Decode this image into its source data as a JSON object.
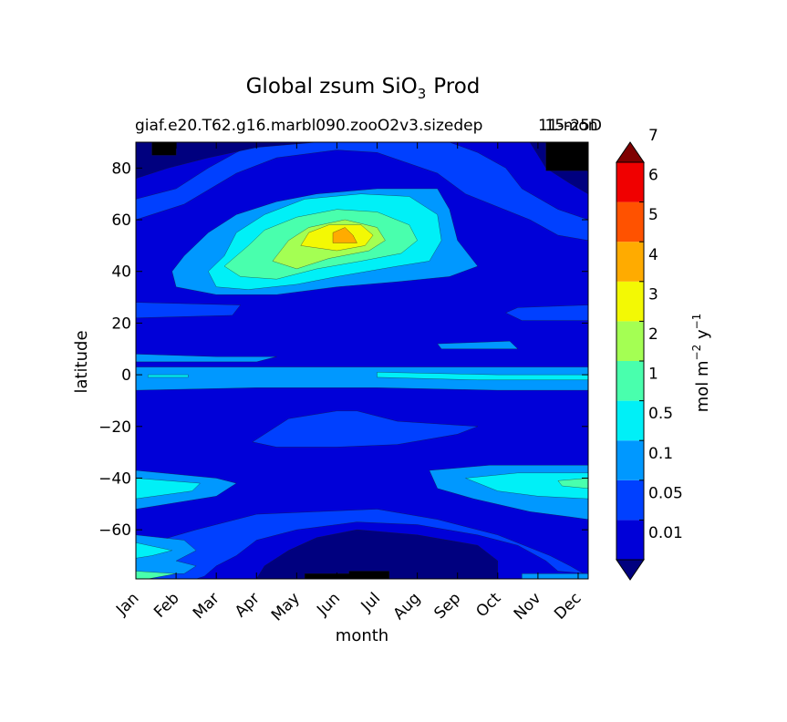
{
  "chart_data": {
    "type": "contourf",
    "title": "Global zsum SiO",
    "title_subscript": "3",
    "title_suffix": "Prod",
    "subtitle_left": "giaf.e20.T62.g16.marbl090.zooO2v3.sizedep",
    "subtitle_right": "15-25D",
    "subtitle_overlap": "11-mon",
    "xlabel": "month",
    "ylabel": "latitude",
    "x_ticks": [
      "Jan",
      "Feb",
      "Mar",
      "Apr",
      "May",
      "Jun",
      "Jul",
      "Aug",
      "Sep",
      "Oct",
      "Nov",
      "Dec"
    ],
    "xlim": [
      0,
      11.25
    ],
    "ylim": [
      -79,
      90
    ],
    "y_ticks": [
      -60,
      -40,
      -20,
      0,
      20,
      40,
      60,
      80
    ],
    "y_tick_labels": [
      "−60",
      "−40",
      "−20",
      "0",
      "20",
      "40",
      "60",
      "80"
    ],
    "colorbar": {
      "label_text": "mol m",
      "label_sup1": "−2",
      "label_mid": " y",
      "label_sup2": "−1",
      "extend": "both",
      "levels": [
        0.01,
        0.05,
        0.1,
        0.5,
        1,
        2,
        3,
        4,
        5,
        6,
        7
      ],
      "tick_labels": [
        "0.01",
        "0.05",
        "0.1",
        "0.5",
        "1",
        "2",
        "3",
        "4",
        "5",
        "6",
        "7"
      ],
      "colors": [
        "#00007f",
        "#0000d8",
        "#0040ff",
        "#0098ff",
        "#00f0f7",
        "#49ffad",
        "#a4ff53",
        "#f3f904",
        "#ffab00",
        "#ff5200",
        "#f00000",
        "#7f0000"
      ]
    },
    "regions": [
      {
        "level": 1,
        "label": "background",
        "poly": [
          [
            0,
            -79
          ],
          [
            11.25,
            -79
          ],
          [
            11.25,
            90
          ],
          [
            0,
            90
          ]
        ]
      },
      {
        "level": 2,
        "label": "north-low",
        "poly": [
          [
            0,
            90
          ],
          [
            11.25,
            90
          ],
          [
            11.25,
            52
          ],
          [
            10.5,
            54
          ],
          [
            9.8,
            60
          ],
          [
            8.2,
            70
          ],
          [
            7.5,
            78
          ],
          [
            6.0,
            86
          ],
          [
            5.0,
            87
          ],
          [
            3.5,
            84
          ],
          [
            2.5,
            78
          ],
          [
            1.2,
            66
          ],
          [
            0,
            60
          ]
        ]
      },
      {
        "level": 1,
        "label": "north-very-low",
        "poly": [
          [
            0,
            90
          ],
          [
            11.25,
            90
          ],
          [
            11.25,
            60
          ],
          [
            10.5,
            64
          ],
          [
            9.6,
            72
          ],
          [
            9.2,
            80
          ],
          [
            8.5,
            86
          ],
          [
            7.8,
            90
          ],
          [
            3.0,
            90
          ],
          [
            2.5,
            86
          ],
          [
            1.8,
            80
          ],
          [
            1.0,
            72
          ],
          [
            0,
            68
          ]
        ]
      },
      {
        "level": 0,
        "label": "north-min",
        "poly": [
          [
            0,
            90
          ],
          [
            11.25,
            90
          ],
          [
            11.25,
            70
          ],
          [
            10.8,
            74
          ],
          [
            10.2,
            80
          ],
          [
            9.8,
            90
          ],
          [
            4.5,
            90
          ],
          [
            3.0,
            88
          ],
          [
            1.8,
            84
          ],
          [
            0.8,
            80
          ],
          [
            0,
            76
          ]
        ]
      },
      {
        "level": -1,
        "label": "north-below",
        "poly": [
          [
            0.4,
            90
          ],
          [
            1.0,
            90
          ],
          [
            1.0,
            85
          ],
          [
            0.4,
            85
          ]
        ]
      },
      {
        "level": -1,
        "label": "north-below-2",
        "poly": [
          [
            10.2,
            90
          ],
          [
            11.25,
            90
          ],
          [
            11.25,
            79
          ],
          [
            10.2,
            79
          ]
        ]
      },
      {
        "level": 3,
        "label": "north-bloom-0.5",
        "poly": [
          [
            1.2,
            46
          ],
          [
            1.8,
            55
          ],
          [
            2.5,
            62
          ],
          [
            3.5,
            67
          ],
          [
            4.5,
            70
          ],
          [
            6.0,
            72
          ],
          [
            7.5,
            72
          ],
          [
            7.8,
            64
          ],
          [
            8.0,
            52
          ],
          [
            8.5,
            42
          ],
          [
            7.8,
            38
          ],
          [
            6.5,
            36
          ],
          [
            5.0,
            34
          ],
          [
            3.5,
            31
          ],
          [
            2.0,
            31
          ],
          [
            1.0,
            34
          ],
          [
            0.9,
            40
          ]
        ]
      },
      {
        "level": 4,
        "label": "north-bloom-1",
        "poly": [
          [
            1.8,
            40
          ],
          [
            2.2,
            46
          ],
          [
            2.5,
            55
          ],
          [
            3.2,
            62
          ],
          [
            4.2,
            68
          ],
          [
            5.6,
            70
          ],
          [
            6.8,
            69
          ],
          [
            7.5,
            62
          ],
          [
            7.6,
            52
          ],
          [
            7.3,
            44
          ],
          [
            6.5,
            42
          ],
          [
            5.0,
            38
          ],
          [
            4.0,
            35
          ],
          [
            2.8,
            33
          ],
          [
            2.0,
            34
          ]
        ]
      },
      {
        "level": 5,
        "label": "north-bloom-2",
        "poly": [
          [
            2.2,
            42
          ],
          [
            2.8,
            50
          ],
          [
            3.2,
            56
          ],
          [
            4.0,
            61
          ],
          [
            5.0,
            64
          ],
          [
            6.0,
            63
          ],
          [
            6.8,
            58
          ],
          [
            7.0,
            52
          ],
          [
            6.6,
            47
          ],
          [
            5.6,
            44
          ],
          [
            4.5,
            41
          ],
          [
            3.5,
            37
          ],
          [
            2.6,
            38
          ]
        ]
      },
      {
        "level": 6,
        "label": "north-bloom-3",
        "poly": [
          [
            3.4,
            44
          ],
          [
            3.8,
            52
          ],
          [
            4.3,
            57
          ],
          [
            5.2,
            60
          ],
          [
            6.0,
            57
          ],
          [
            6.2,
            52
          ],
          [
            5.8,
            48
          ],
          [
            4.8,
            45
          ],
          [
            4.0,
            41
          ]
        ]
      },
      {
        "level": 7,
        "label": "north-bloom-4",
        "poly": [
          [
            4.1,
            50
          ],
          [
            4.3,
            55
          ],
          [
            4.8,
            58
          ],
          [
            5.6,
            58
          ],
          [
            5.9,
            54
          ],
          [
            5.7,
            50
          ],
          [
            5.0,
            48
          ]
        ]
      },
      {
        "level": 8,
        "label": "north-bloom-5",
        "poly": [
          [
            4.9,
            51
          ],
          [
            4.9,
            55
          ],
          [
            5.2,
            57
          ],
          [
            5.4,
            54
          ],
          [
            5.5,
            51
          ]
        ]
      },
      {
        "level": 2,
        "label": "band-25-low",
        "poly": [
          [
            0,
            28
          ],
          [
            2.6,
            27
          ],
          [
            2.4,
            23
          ],
          [
            0,
            22
          ]
        ]
      },
      {
        "level": 2,
        "label": "band-25-low-east",
        "poly": [
          [
            9.5,
            26
          ],
          [
            11.25,
            27
          ],
          [
            11.25,
            21
          ],
          [
            9.6,
            21
          ],
          [
            9.2,
            24
          ]
        ]
      },
      {
        "level": 3,
        "label": "equator-band",
        "poly": [
          [
            0,
            3
          ],
          [
            11.25,
            3
          ],
          [
            11.25,
            -6
          ],
          [
            9.0,
            -6
          ],
          [
            6.0,
            -5
          ],
          [
            3.0,
            -5
          ],
          [
            0,
            -6
          ]
        ]
      },
      {
        "level": 3,
        "label": "band-12",
        "poly": [
          [
            7.5,
            12
          ],
          [
            9.3,
            13
          ],
          [
            9.5,
            10
          ],
          [
            7.6,
            10
          ]
        ]
      },
      {
        "level": 3,
        "label": "band-5",
        "poly": [
          [
            0,
            8
          ],
          [
            2.0,
            7
          ],
          [
            3.5,
            7
          ],
          [
            3.0,
            5
          ],
          [
            0,
            5
          ]
        ]
      },
      {
        "level": 4,
        "label": "equator-core",
        "poly": [
          [
            6.0,
            1
          ],
          [
            9.0,
            0
          ],
          [
            11.25,
            0
          ],
          [
            11.25,
            -2
          ],
          [
            8.5,
            -2
          ],
          [
            6.0,
            -1
          ]
        ]
      },
      {
        "level": 4,
        "label": "equator-core-west",
        "poly": [
          [
            0.3,
            0
          ],
          [
            1.3,
            0
          ],
          [
            1.3,
            -1
          ],
          [
            0.3,
            -1
          ]
        ]
      },
      {
        "level": 2,
        "label": "south-trop-low",
        "poly": [
          [
            2.9,
            -26
          ],
          [
            3.8,
            -17
          ],
          [
            5.0,
            -14
          ],
          [
            5.5,
            -14
          ],
          [
            6.5,
            -18
          ],
          [
            8.5,
            -20
          ],
          [
            8.0,
            -23
          ],
          [
            6.5,
            -27
          ],
          [
            5.0,
            -28
          ],
          [
            3.5,
            -28
          ]
        ]
      },
      {
        "level": 3,
        "label": "south-sub-0.5",
        "poly": [
          [
            0,
            -37
          ],
          [
            2.0,
            -40
          ],
          [
            2.5,
            -42
          ],
          [
            2.0,
            -47
          ],
          [
            0,
            -52
          ]
        ]
      },
      {
        "level": 4,
        "label": "south-sub-1",
        "poly": [
          [
            0,
            -40
          ],
          [
            1.6,
            -42
          ],
          [
            1.4,
            -45
          ],
          [
            0,
            -48
          ]
        ]
      },
      {
        "level": 3,
        "label": "south-east-0.5",
        "poly": [
          [
            7.3,
            -37
          ],
          [
            8.8,
            -35
          ],
          [
            10.5,
            -35
          ],
          [
            11.25,
            -35
          ],
          [
            11.25,
            -56
          ],
          [
            10.8,
            -55
          ],
          [
            9.8,
            -53
          ],
          [
            8.4,
            -48
          ],
          [
            7.5,
            -44
          ]
        ]
      },
      {
        "level": 4,
        "label": "south-east-1",
        "poly": [
          [
            8.2,
            -40
          ],
          [
            9.5,
            -38
          ],
          [
            11.25,
            -38
          ],
          [
            11.25,
            -48
          ],
          [
            10.0,
            -47
          ],
          [
            9.0,
            -45
          ]
        ]
      },
      {
        "level": 5,
        "label": "south-east-2",
        "poly": [
          [
            10.5,
            -41
          ],
          [
            11.25,
            -40
          ],
          [
            11.25,
            -44
          ],
          [
            10.6,
            -43
          ]
        ]
      },
      {
        "level": 2,
        "label": "south-polar-low",
        "poly": [
          [
            0,
            -79
          ],
          [
            11.25,
            -79
          ],
          [
            11.25,
            -78
          ],
          [
            10.8,
            -74
          ],
          [
            10.3,
            -70
          ],
          [
            9.0,
            -62
          ],
          [
            7.5,
            -56
          ],
          [
            6.0,
            -52
          ],
          [
            4.5,
            -53
          ],
          [
            3.0,
            -54
          ],
          [
            1.5,
            -60
          ],
          [
            0.6,
            -64
          ],
          [
            0,
            -62
          ]
        ]
      },
      {
        "level": 1,
        "label": "south-polar-very-low",
        "poly": [
          [
            1.5,
            -79
          ],
          [
            11.25,
            -79
          ],
          [
            11.25,
            -77
          ],
          [
            10.5,
            -76
          ],
          [
            10.2,
            -72
          ],
          [
            9.5,
            -66
          ],
          [
            8.5,
            -62
          ],
          [
            7.0,
            -58
          ],
          [
            5.5,
            -57
          ],
          [
            4.0,
            -60
          ],
          [
            3.0,
            -64
          ],
          [
            2.5,
            -70
          ],
          [
            2.0,
            -74
          ],
          [
            1.7,
            -78
          ]
        ]
      },
      {
        "level": 0,
        "label": "south-polar-min",
        "poly": [
          [
            3.0,
            -79
          ],
          [
            9.0,
            -79
          ],
          [
            9.0,
            -72
          ],
          [
            8.5,
            -66
          ],
          [
            7.0,
            -62
          ],
          [
            5.5,
            -60
          ],
          [
            4.5,
            -63
          ],
          [
            3.8,
            -68
          ],
          [
            3.2,
            -74
          ]
        ]
      },
      {
        "level": -1,
        "label": "south-polar-below",
        "poly": [
          [
            4.2,
            -79
          ],
          [
            6.3,
            -79
          ],
          [
            6.3,
            -76
          ],
          [
            5.3,
            -76
          ],
          [
            5.3,
            -77
          ],
          [
            4.2,
            -77
          ]
        ]
      },
      {
        "level": 3,
        "label": "south-west-0.5",
        "poly": [
          [
            0,
            -62
          ],
          [
            1.2,
            -64
          ],
          [
            1.5,
            -68
          ],
          [
            1.0,
            -72
          ],
          [
            1.5,
            -74
          ],
          [
            1.2,
            -77
          ],
          [
            0,
            -77
          ]
        ]
      },
      {
        "level": 4,
        "label": "south-west-1",
        "poly": [
          [
            0,
            -65
          ],
          [
            0.9,
            -68
          ],
          [
            0.4,
            -70
          ],
          [
            0,
            -71
          ]
        ]
      },
      {
        "level": 5,
        "label": "south-west-corner",
        "poly": [
          [
            0,
            -76
          ],
          [
            1.0,
            -77
          ],
          [
            0.3,
            -79
          ],
          [
            0,
            -79
          ]
        ]
      },
      {
        "level": 3,
        "label": "south-east-corner",
        "poly": [
          [
            9.6,
            -77
          ],
          [
            11.25,
            -77
          ],
          [
            11.25,
            -79
          ],
          [
            9.6,
            -79
          ]
        ]
      }
    ]
  }
}
